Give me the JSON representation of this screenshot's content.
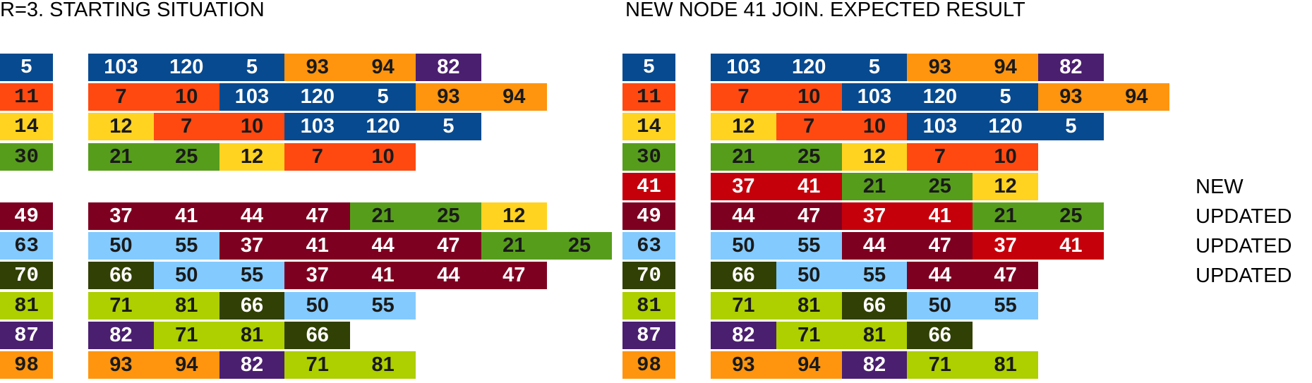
{
  "palette": {
    "blue": "#084a8f",
    "orange_red": "#ff4910",
    "yellow": "#ffd320",
    "green": "#579d1c",
    "dark_red": "#7e0021",
    "light_blue": "#83caff",
    "dark_olive": "#314004",
    "lime": "#aecf00",
    "purple": "#4b1f6f",
    "orange": "#ff950e",
    "red": "#c5000b"
  },
  "left": {
    "title": "R=3. STARTING SITUATION",
    "rows": [
      {
        "node": "5",
        "node_color": "blue",
        "entries": [
          [
            "103",
            "blue"
          ],
          [
            "120",
            "blue"
          ],
          [
            "5",
            "blue"
          ],
          [
            "93",
            "orange"
          ],
          [
            "94",
            "orange"
          ],
          [
            "82",
            "purple"
          ]
        ]
      },
      {
        "node": "11",
        "node_color": "orange_red",
        "entries": [
          [
            "7",
            "orange_red"
          ],
          [
            "10",
            "orange_red"
          ],
          [
            "103",
            "blue"
          ],
          [
            "120",
            "blue"
          ],
          [
            "5",
            "blue"
          ],
          [
            "93",
            "orange"
          ],
          [
            "94",
            "orange"
          ]
        ]
      },
      {
        "node": "14",
        "node_color": "yellow",
        "entries": [
          [
            "12",
            "yellow"
          ],
          [
            "7",
            "orange_red"
          ],
          [
            "10",
            "orange_red"
          ],
          [
            "103",
            "blue"
          ],
          [
            "120",
            "blue"
          ],
          [
            "5",
            "blue"
          ]
        ]
      },
      {
        "node": "30",
        "node_color": "green",
        "entries": [
          [
            "21",
            "green"
          ],
          [
            "25",
            "green"
          ],
          [
            "12",
            "yellow"
          ],
          [
            "7",
            "orange_red"
          ],
          [
            "10",
            "orange_red"
          ]
        ]
      },
      null,
      {
        "node": "49",
        "node_color": "dark_red",
        "entries": [
          [
            "37",
            "dark_red"
          ],
          [
            "41",
            "dark_red"
          ],
          [
            "44",
            "dark_red"
          ],
          [
            "47",
            "dark_red"
          ],
          [
            "21",
            "green"
          ],
          [
            "25",
            "green"
          ],
          [
            "12",
            "yellow"
          ]
        ]
      },
      {
        "node": "63",
        "node_color": "light_blue",
        "entries": [
          [
            "50",
            "light_blue"
          ],
          [
            "55",
            "light_blue"
          ],
          [
            "37",
            "dark_red"
          ],
          [
            "41",
            "dark_red"
          ],
          [
            "44",
            "dark_red"
          ],
          [
            "47",
            "dark_red"
          ],
          [
            "21",
            "green"
          ],
          [
            "25",
            "green"
          ]
        ]
      },
      {
        "node": "70",
        "node_color": "dark_olive",
        "entries": [
          [
            "66",
            "dark_olive"
          ],
          [
            "50",
            "light_blue"
          ],
          [
            "55",
            "light_blue"
          ],
          [
            "37",
            "dark_red"
          ],
          [
            "41",
            "dark_red"
          ],
          [
            "44",
            "dark_red"
          ],
          [
            "47",
            "dark_red"
          ]
        ]
      },
      {
        "node": "81",
        "node_color": "lime",
        "entries": [
          [
            "71",
            "lime"
          ],
          [
            "81",
            "lime"
          ],
          [
            "66",
            "dark_olive"
          ],
          [
            "50",
            "light_blue"
          ],
          [
            "55",
            "light_blue"
          ]
        ]
      },
      {
        "node": "87",
        "node_color": "purple",
        "entries": [
          [
            "82",
            "purple"
          ],
          [
            "71",
            "lime"
          ],
          [
            "81",
            "lime"
          ],
          [
            "66",
            "dark_olive"
          ]
        ]
      },
      {
        "node": "98",
        "node_color": "orange",
        "entries": [
          [
            "93",
            "orange"
          ],
          [
            "94",
            "orange"
          ],
          [
            "82",
            "purple"
          ],
          [
            "71",
            "lime"
          ],
          [
            "81",
            "lime"
          ]
        ]
      }
    ]
  },
  "right": {
    "title": "NEW NODE 41 JOIN. EXPECTED RESULT",
    "rows": [
      {
        "node": "5",
        "node_color": "blue",
        "entries": [
          [
            "103",
            "blue"
          ],
          [
            "120",
            "blue"
          ],
          [
            "5",
            "blue"
          ],
          [
            "93",
            "orange"
          ],
          [
            "94",
            "orange"
          ],
          [
            "82",
            "purple"
          ]
        ]
      },
      {
        "node": "11",
        "node_color": "orange_red",
        "entries": [
          [
            "7",
            "orange_red"
          ],
          [
            "10",
            "orange_red"
          ],
          [
            "103",
            "blue"
          ],
          [
            "120",
            "blue"
          ],
          [
            "5",
            "blue"
          ],
          [
            "93",
            "orange"
          ],
          [
            "94",
            "orange"
          ]
        ]
      },
      {
        "node": "14",
        "node_color": "yellow",
        "entries": [
          [
            "12",
            "yellow"
          ],
          [
            "7",
            "orange_red"
          ],
          [
            "10",
            "orange_red"
          ],
          [
            "103",
            "blue"
          ],
          [
            "120",
            "blue"
          ],
          [
            "5",
            "blue"
          ]
        ]
      },
      {
        "node": "30",
        "node_color": "green",
        "entries": [
          [
            "21",
            "green"
          ],
          [
            "25",
            "green"
          ],
          [
            "12",
            "yellow"
          ],
          [
            "7",
            "orange_red"
          ],
          [
            "10",
            "orange_red"
          ]
        ]
      },
      {
        "node": "41",
        "node_color": "red",
        "status": "NEW",
        "entries": [
          [
            "37",
            "red"
          ],
          [
            "41",
            "red"
          ],
          [
            "21",
            "green"
          ],
          [
            "25",
            "green"
          ],
          [
            "12",
            "yellow"
          ]
        ]
      },
      {
        "node": "49",
        "node_color": "dark_red",
        "status": "UPDATED",
        "entries": [
          [
            "44",
            "dark_red"
          ],
          [
            "47",
            "dark_red"
          ],
          [
            "37",
            "red"
          ],
          [
            "41",
            "red"
          ],
          [
            "21",
            "green"
          ],
          [
            "25",
            "green"
          ]
        ]
      },
      {
        "node": "63",
        "node_color": "light_blue",
        "status": "UPDATED",
        "entries": [
          [
            "50",
            "light_blue"
          ],
          [
            "55",
            "light_blue"
          ],
          [
            "44",
            "dark_red"
          ],
          [
            "47",
            "dark_red"
          ],
          [
            "37",
            "red"
          ],
          [
            "41",
            "red"
          ]
        ]
      },
      {
        "node": "70",
        "node_color": "dark_olive",
        "status": "UPDATED",
        "entries": [
          [
            "66",
            "dark_olive"
          ],
          [
            "50",
            "light_blue"
          ],
          [
            "55",
            "light_blue"
          ],
          [
            "44",
            "dark_red"
          ],
          [
            "47",
            "dark_red"
          ]
        ]
      },
      {
        "node": "81",
        "node_color": "lime",
        "entries": [
          [
            "71",
            "lime"
          ],
          [
            "81",
            "lime"
          ],
          [
            "66",
            "dark_olive"
          ],
          [
            "50",
            "light_blue"
          ],
          [
            "55",
            "light_blue"
          ]
        ]
      },
      {
        "node": "87",
        "node_color": "purple",
        "entries": [
          [
            "82",
            "purple"
          ],
          [
            "71",
            "lime"
          ],
          [
            "81",
            "lime"
          ],
          [
            "66",
            "dark_olive"
          ]
        ]
      },
      {
        "node": "98",
        "node_color": "orange",
        "entries": [
          [
            "93",
            "orange"
          ],
          [
            "94",
            "orange"
          ],
          [
            "82",
            "purple"
          ],
          [
            "71",
            "lime"
          ],
          [
            "81",
            "lime"
          ]
        ]
      }
    ]
  }
}
